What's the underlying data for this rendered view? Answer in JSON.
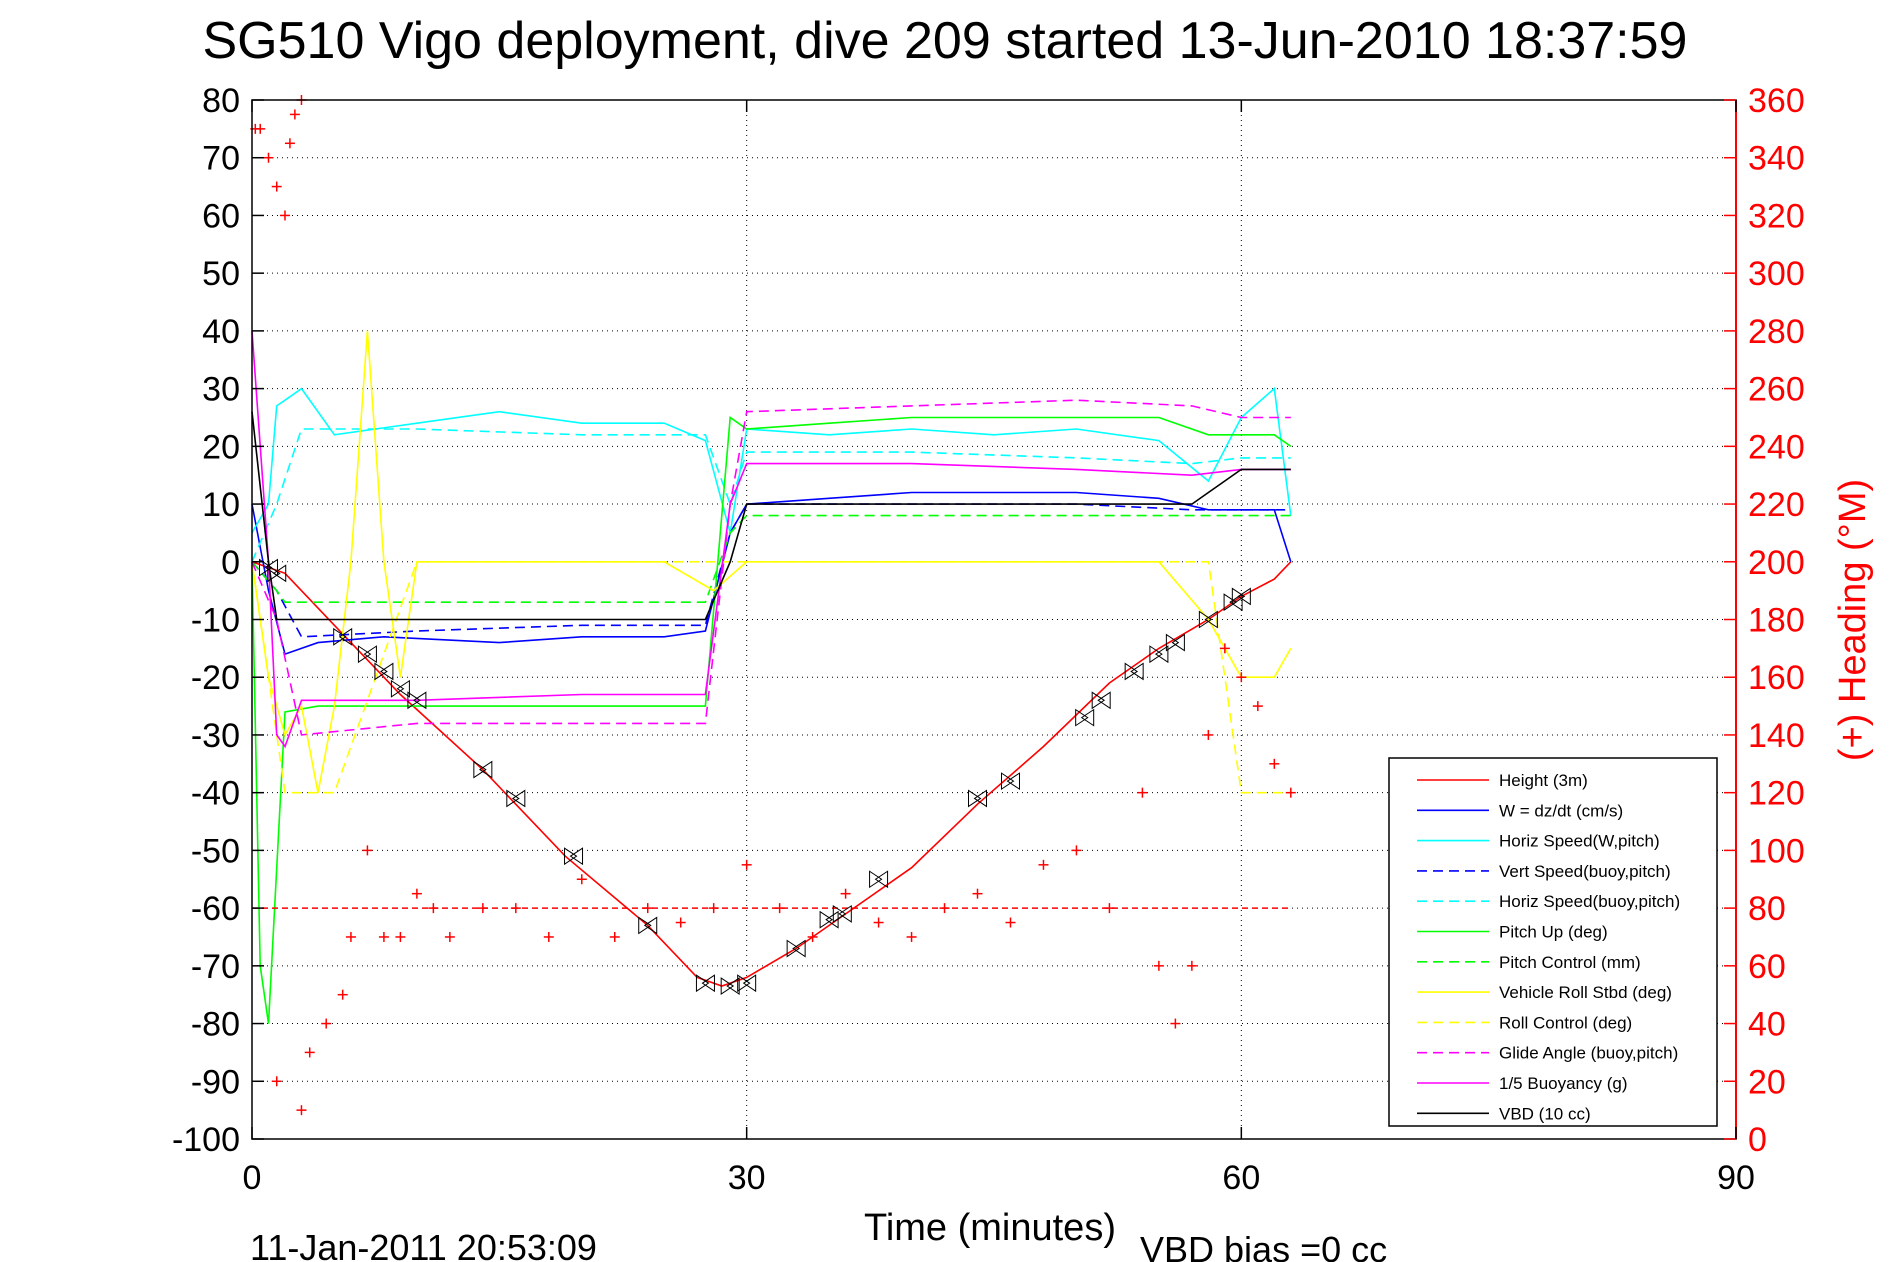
{
  "title": "SG510 Vigo deployment, dive 209 started 13-Jun-2010 18:37:59",
  "footer": {
    "timestamp": "11-Jan-2011 20:53:09",
    "vbd_bias": "VBD bias =0 cc"
  },
  "colors": {
    "axis": "#000000",
    "heading": "#ff0000",
    "grid": "#000000"
  },
  "chart_data": {
    "type": "line",
    "title": "SG510 Vigo deployment, dive 209 started 13-Jun-2010 18:37:59",
    "xlabel": "Time (minutes)",
    "ylabel": "",
    "y2label": "(+) Heading (°M)",
    "xlim": [
      0,
      90
    ],
    "ylim": [
      -100,
      80
    ],
    "y2lim": [
      0,
      360
    ],
    "xticks": [
      "0",
      "30",
      "60",
      "90"
    ],
    "yticks": [
      "80",
      "70",
      "60",
      "50",
      "40",
      "30",
      "20",
      "10",
      "0",
      "-10",
      "-20",
      "-30",
      "-40",
      "-50",
      "-60",
      "-70",
      "-80",
      "-90",
      "-100"
    ],
    "y2ticks": [
      "360",
      "340",
      "320",
      "300",
      "280",
      "260",
      "240",
      "220",
      "200",
      "180",
      "160",
      "140",
      "120",
      "100",
      "80",
      "60",
      "40",
      "20",
      "0"
    ],
    "grid": true,
    "legend_position": "bottom-right",
    "series": [
      {
        "name": "Height (3m)",
        "color": "#ff0000",
        "style": "solid",
        "x": [
          0,
          1,
          2,
          5,
          9,
          14,
          19,
          24,
          27,
          28.5,
          30,
          33,
          36,
          40,
          44,
          48,
          52,
          55,
          58,
          60,
          62,
          63
        ],
        "y": [
          0,
          -1,
          -2,
          -11,
          -23,
          -36,
          -51,
          -63,
          -72,
          -73.5,
          -72,
          -67,
          -61,
          -53,
          -42,
          -32,
          -21,
          -15,
          -10,
          -6,
          -3,
          0
        ]
      },
      {
        "name": "W = dz/dt (cm/s)",
        "color": "#0000ff",
        "style": "solid",
        "x": [
          0,
          1,
          2,
          4,
          8,
          15,
          20,
          25,
          27.5,
          29,
          30,
          35,
          40,
          45,
          50,
          55,
          58,
          60,
          62,
          63
        ],
        "y": [
          10,
          -5,
          -16,
          -14,
          -13,
          -14,
          -13,
          -13,
          -12,
          5,
          10,
          11,
          12,
          12,
          12,
          11,
          9,
          9,
          9,
          0
        ]
      },
      {
        "name": "Horiz Speed(W,pitch)",
        "color": "#00ffff",
        "style": "solid",
        "x": [
          0,
          1,
          1.5,
          2,
          3,
          5,
          10,
          15,
          20,
          25,
          27.5,
          29,
          30,
          35,
          40,
          45,
          50,
          55,
          58,
          60,
          62,
          63
        ],
        "y": [
          5,
          10,
          27,
          28,
          30,
          22,
          24,
          26,
          24,
          24,
          21,
          5,
          23,
          22,
          23,
          22,
          23,
          21,
          14,
          25,
          30,
          8
        ]
      },
      {
        "name": "Vert Speed(buoy,pitch)",
        "color": "#0000ff",
        "style": "dashed",
        "x": [
          0,
          1.5,
          3,
          10,
          20,
          27.5,
          29,
          30,
          40,
          50,
          57,
          60,
          63
        ],
        "y": [
          0,
          -5,
          -13,
          -12,
          -11,
          -11,
          5,
          10,
          10,
          10,
          9,
          9,
          9
        ]
      },
      {
        "name": "Horiz Speed(buoy,pitch)",
        "color": "#00ffff",
        "style": "dashed",
        "x": [
          0,
          1.5,
          3,
          10,
          20,
          27.5,
          29,
          30,
          40,
          50,
          57,
          60,
          63
        ],
        "y": [
          0,
          10,
          23,
          23,
          22,
          22,
          10,
          19,
          19,
          18,
          17,
          18,
          18
        ]
      },
      {
        "name": "Pitch Up (deg)",
        "color": "#00ff00",
        "style": "solid",
        "x": [
          0,
          0.5,
          1,
          2,
          4,
          10,
          20,
          27.5,
          29,
          30,
          35,
          40,
          45,
          50,
          55,
          58,
          60,
          62,
          63
        ],
        "y": [
          0,
          -70,
          -80,
          -26,
          -25,
          -25,
          -25,
          -25,
          25,
          23,
          24,
          25,
          25,
          25,
          25,
          22,
          22,
          22,
          20
        ]
      },
      {
        "name": "Pitch Control (mm)",
        "color": "#00ff00",
        "style": "dashed",
        "x": [
          0,
          1.5,
          2,
          10,
          20,
          27.5,
          29,
          30,
          40,
          50,
          57,
          60,
          63
        ],
        "y": [
          0,
          -5,
          -7,
          -7,
          -7,
          -7,
          5,
          8,
          8,
          8,
          8,
          8,
          8
        ]
      },
      {
        "name": "Vehicle Roll Stbd (deg)",
        "color": "#ffff00",
        "style": "solid",
        "x": [
          0,
          1,
          2,
          3,
          4,
          5,
          6,
          7,
          8,
          9,
          10,
          12,
          15,
          20,
          25,
          28,
          30,
          32,
          35,
          40,
          45,
          50,
          55,
          58,
          60,
          62,
          63
        ],
        "y": [
          0,
          -20,
          -30,
          -25,
          -40,
          -25,
          0,
          40,
          0,
          -20,
          0,
          0,
          0,
          0,
          0,
          -5,
          0,
          0,
          0,
          0,
          0,
          0,
          0,
          -10,
          -20,
          -20,
          -15
        ]
      },
      {
        "name": "Roll Control (deg)",
        "color": "#ffff00",
        "style": "dashed",
        "x": [
          0,
          2,
          5,
          10,
          15,
          20,
          25,
          28,
          30,
          35,
          40,
          45,
          50,
          55,
          58,
          60,
          62,
          63
        ],
        "y": [
          0,
          -40,
          -40,
          0,
          0,
          0,
          0,
          0,
          0,
          0,
          0,
          0,
          0,
          0,
          0,
          -40,
          -40,
          -40
        ]
      },
      {
        "name": "Glide Angle (buoy,pitch)",
        "color": "#ff00ff",
        "style": "dashed",
        "x": [
          0,
          1.5,
          3,
          10,
          20,
          27.5,
          29,
          30,
          40,
          50,
          57,
          60,
          63
        ],
        "y": [
          0,
          -10,
          -30,
          -28,
          -28,
          -28,
          10,
          26,
          27,
          28,
          27,
          25,
          25
        ]
      },
      {
        "name": "1/5 Buoyancy (g)",
        "color": "#ff00ff",
        "style": "solid",
        "x": [
          0,
          1,
          1.5,
          2,
          3,
          10,
          20,
          27.5,
          29,
          30,
          40,
          50,
          57,
          60,
          62,
          63
        ],
        "y": [
          40,
          0,
          -30,
          -32,
          -24,
          -24,
          -23,
          -23,
          10,
          17,
          17,
          16,
          15,
          16,
          16,
          16
        ]
      },
      {
        "name": "VBD (10 cc)",
        "color": "#000000",
        "style": "solid",
        "x": [
          0,
          1,
          1.5,
          2,
          10,
          20,
          27.5,
          29,
          30,
          40,
          50,
          57,
          58,
          59,
          60,
          63
        ],
        "y": [
          26,
          0,
          -10,
          -10,
          -10,
          -10,
          -10,
          0,
          10,
          10,
          10,
          10,
          12,
          14,
          16,
          16
        ]
      }
    ],
    "heading_points": {
      "name": "Heading",
      "color": "#ff0000",
      "x": [
        0.2,
        0.5,
        1,
        1.5,
        2,
        2.3,
        2.6,
        3,
        1.5,
        3,
        3.5,
        4.5,
        5.5,
        6,
        7,
        8,
        9,
        10,
        11,
        12,
        14,
        16,
        18,
        20,
        22,
        24,
        26,
        28,
        30,
        32,
        34,
        36,
        38,
        40,
        42,
        44,
        46,
        48,
        50,
        52,
        54,
        55,
        56,
        57,
        58,
        59,
        60,
        61,
        62,
        63
      ],
      "y": [
        350,
        350,
        340,
        330,
        320,
        345,
        355,
        360,
        20,
        10,
        30,
        40,
        50,
        70,
        100,
        70,
        70,
        85,
        80,
        70,
        80,
        80,
        70,
        90,
        70,
        80,
        75,
        80,
        95,
        80,
        70,
        85,
        75,
        70,
        80,
        85,
        75,
        95,
        100,
        80,
        120,
        60,
        40,
        60,
        140,
        170,
        160,
        150,
        130,
        120
      ],
      "reference_line": 80
    },
    "markers": {
      "name": "Triangle markers",
      "x": [
        1,
        1.5,
        5.5,
        7,
        8,
        9,
        10,
        14,
        16,
        19.5,
        24,
        27.5,
        29,
        30,
        33,
        35,
        35.8,
        38,
        44,
        46,
        50.5,
        51.5,
        53.5,
        55,
        56,
        58,
        59.5,
        60
      ],
      "y": [
        -1,
        -2,
        -13,
        -16,
        -19,
        -22,
        -24,
        -36,
        -41,
        -51,
        -63,
        -73,
        -73.5,
        -73,
        -67,
        -62,
        -61,
        -55,
        -41,
        -38,
        -27,
        -24,
        -19,
        -16,
        -14,
        -10,
        -7,
        -6
      ]
    }
  }
}
